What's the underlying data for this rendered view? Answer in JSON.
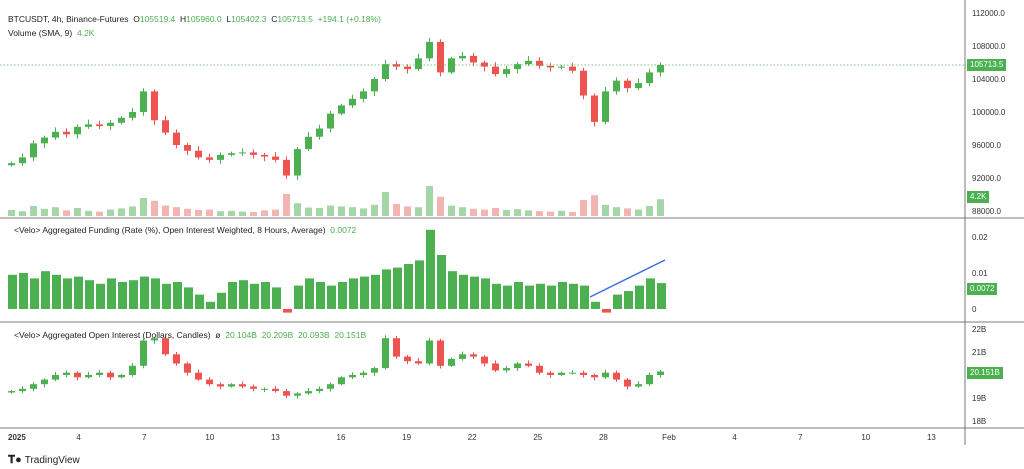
{
  "legend": {
    "symbol": "BTCUSDT, 4h, Binance-Futures",
    "o_label": "O",
    "o": "105519.4",
    "h_label": "H",
    "h": "105960.0",
    "l_label": "L",
    "l": "105402.3",
    "c_label": "C",
    "c": "105713.5",
    "change": "+194.1 (+0.18%)",
    "volume_label": "Volume (SMA, 9)",
    "volume_value": "4.2K",
    "funding_label": "<Velo> Aggregated Funding (Rate (%), Open Interest Weighted, 8 Hours, Average)",
    "funding_value": "0.0072",
    "oi_label": "<Velo> Aggregated Open Interest (Dollars, Candles)",
    "oi_symbol": "ø",
    "oi_o": "20.104B",
    "oi_h": "20.209B",
    "oi_l": "20.093B",
    "oi_c": "20.151B"
  },
  "badges": {
    "price": "105713.5",
    "volume": "4.2K",
    "funding": "0.0072",
    "oi": "20.151B"
  },
  "branding": {
    "name": "TradingView"
  },
  "colors": {
    "up": "#4caf50",
    "down": "#ef5350",
    "trend": "#3b6fe0"
  },
  "chart_data": [
    {
      "type": "candlestick",
      "title": "BTCUSDT, 4h, Binance-Futures",
      "ylim": [
        88000,
        112000
      ],
      "yticks": [
        "112000.0",
        "108000.0",
        "104000.0",
        "100000.0",
        "96000.0",
        "92000.0",
        "88000.0"
      ],
      "closes": [
        93800,
        94500,
        96200,
        96900,
        97600,
        97300,
        98200,
        98500,
        98300,
        98700,
        99300,
        100000,
        102500,
        99000,
        97500,
        96000,
        95300,
        94500,
        94200,
        94800,
        95000,
        95100,
        94800,
        94600,
        94200,
        92300,
        95500,
        97000,
        98000,
        99800,
        100800,
        101600,
        102500,
        104000,
        105800,
        105500,
        105200,
        106500,
        108500,
        104800,
        106500,
        106800,
        106000,
        105500,
        104600,
        105200,
        105800,
        106200,
        105600,
        105400,
        105500,
        105000,
        102000,
        98800,
        102500,
        103800,
        102900,
        103500,
        104800,
        105700
      ],
      "volume_k": [
        1.5,
        1.2,
        2.5,
        1.8,
        2.2,
        1.4,
        2.0,
        1.3,
        1.1,
        1.6,
        1.9,
        2.4,
        4.5,
        3.8,
        2.6,
        2.2,
        1.8,
        1.5,
        1.6,
        1.2,
        1.3,
        1.1,
        1.0,
        1.4,
        1.6,
        5.5,
        3.2,
        2.1,
        2.0,
        2.6,
        2.4,
        2.2,
        1.9,
        2.8,
        6.0,
        3.0,
        2.4,
        2.2,
        7.5,
        4.8,
        2.6,
        2.2,
        1.8,
        1.6,
        2.0,
        1.5,
        1.7,
        1.4,
        1.2,
        1.1,
        1.3,
        1.0,
        4.0,
        5.2,
        2.8,
        2.2,
        1.9,
        1.6,
        2.5,
        4.2
      ]
    },
    {
      "type": "bar",
      "title": "Aggregated Funding Rate (%)",
      "ylim": [
        -0.002,
        0.026
      ],
      "yticks": [
        "0.02",
        "0.01",
        "0"
      ],
      "values": [
        0.0095,
        0.01,
        0.0085,
        0.0105,
        0.0095,
        0.0085,
        0.009,
        0.008,
        0.007,
        0.0085,
        0.0075,
        0.008,
        0.009,
        0.0085,
        0.007,
        0.0075,
        0.006,
        0.004,
        0.002,
        0.0045,
        0.0075,
        0.008,
        0.007,
        0.0075,
        0.006,
        -0.001,
        0.0065,
        0.0085,
        0.0075,
        0.0065,
        0.0075,
        0.0085,
        0.009,
        0.0095,
        0.011,
        0.0115,
        0.0125,
        0.0135,
        0.022,
        0.015,
        0.0105,
        0.0095,
        0.009,
        0.0085,
        0.007,
        0.0065,
        0.0075,
        0.0065,
        0.007,
        0.0065,
        0.0075,
        0.007,
        0.0065,
        0.002,
        -0.001,
        0.004,
        0.005,
        0.0065,
        0.0085,
        0.0072
      ]
    },
    {
      "type": "candlestick",
      "title": "Aggregated Open Interest (B USD)",
      "ylim": [
        17.7,
        22.3
      ],
      "yticks": [
        "22B",
        "21B",
        "19B",
        "18B"
      ],
      "closes": [
        19.3,
        19.4,
        19.6,
        19.8,
        20.0,
        20.1,
        19.9,
        20.0,
        20.1,
        19.9,
        20.0,
        20.4,
        21.5,
        21.6,
        20.9,
        20.5,
        20.1,
        19.8,
        19.6,
        19.5,
        19.6,
        19.5,
        19.4,
        19.4,
        19.3,
        19.1,
        19.2,
        19.3,
        19.4,
        19.6,
        19.9,
        20.0,
        20.1,
        20.3,
        21.6,
        20.8,
        20.6,
        20.5,
        21.5,
        20.4,
        20.7,
        20.9,
        20.8,
        20.5,
        20.2,
        20.3,
        20.5,
        20.4,
        20.1,
        20.0,
        20.1,
        20.1,
        20.0,
        19.9,
        20.1,
        19.8,
        19.5,
        19.6,
        20.0,
        20.15
      ]
    }
  ],
  "xaxis": {
    "labels": [
      "2025",
      "4",
      "7",
      "10",
      "13",
      "16",
      "19",
      "22",
      "25",
      "28",
      "Feb",
      "4",
      "7",
      "10",
      "13"
    ]
  }
}
